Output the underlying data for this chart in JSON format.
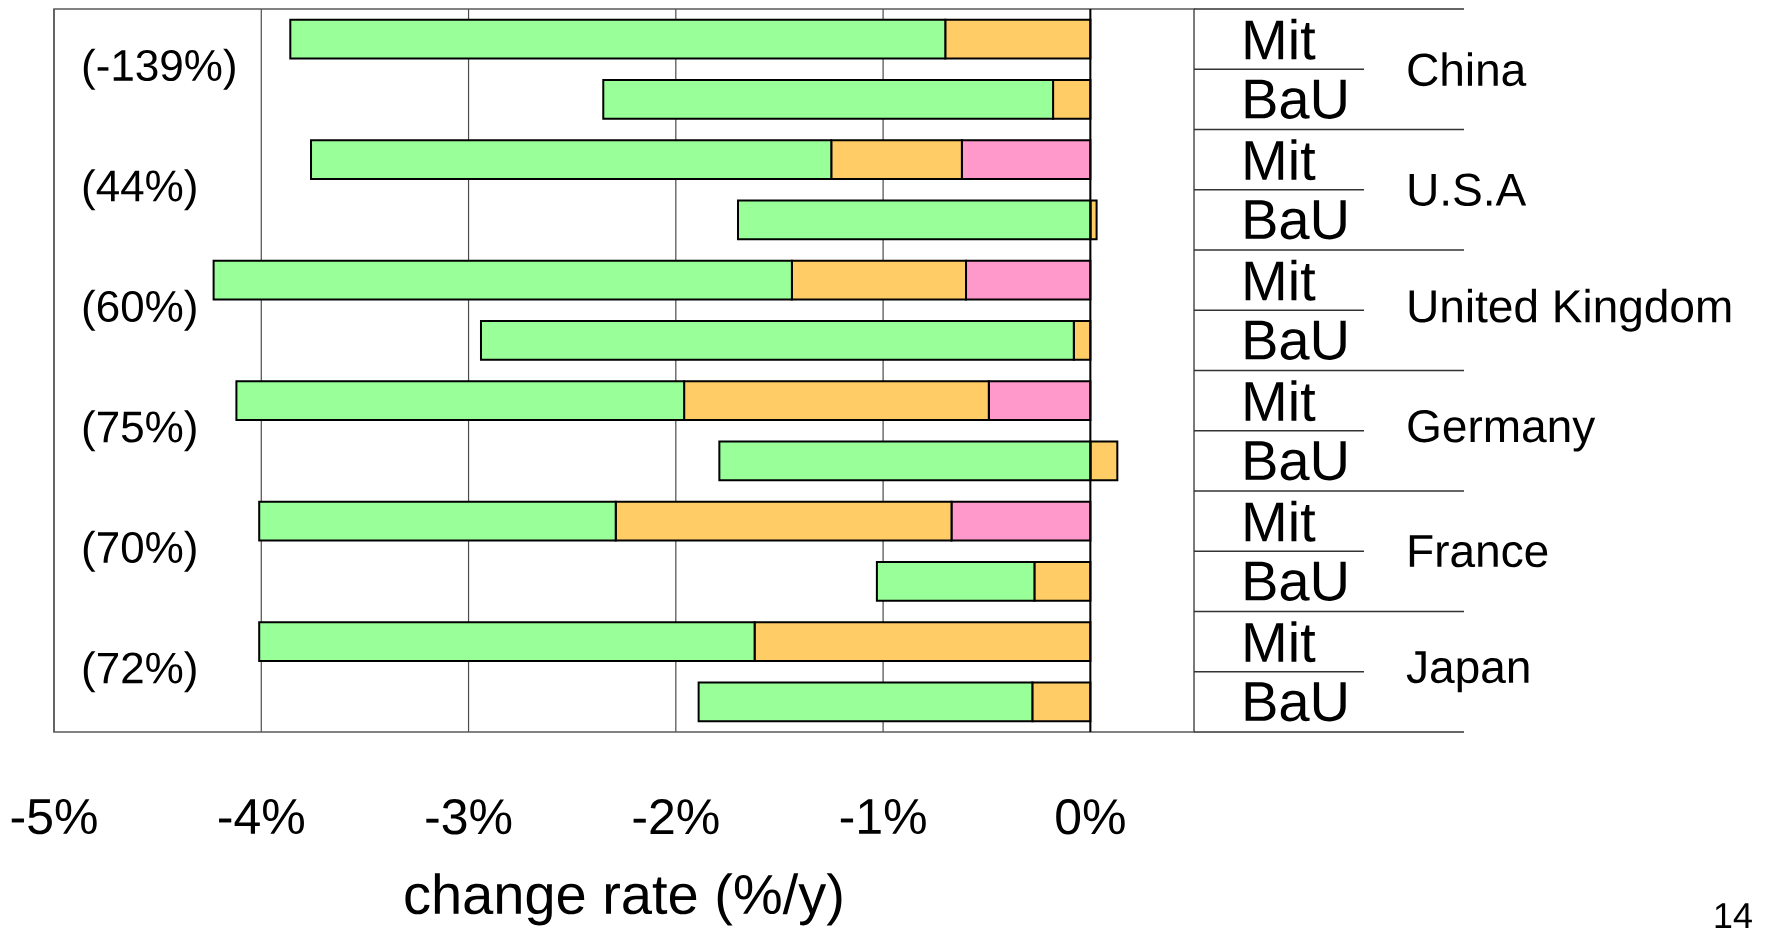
{
  "chart_data": {
    "type": "bar",
    "orientation": "horizontal",
    "stacked": true,
    "categories": [
      "Mit",
      "BaU",
      "Mit",
      "BaU",
      "Mit",
      "BaU",
      "Mit",
      "BaU",
      "Mit",
      "BaU",
      "Mit",
      "BaU"
    ],
    "series": [
      {
        "color": "#ff99cc",
        "values": [
          null,
          null,
          -0.62,
          null,
          -0.6,
          null,
          -0.49,
          null,
          -0.67,
          null,
          null,
          null
        ]
      },
      {
        "color": "#ffcc66",
        "values": [
          -0.7,
          -0.18,
          -0.63,
          0.03,
          -0.84,
          -0.08,
          -1.47,
          0.13,
          -1.62,
          -0.27,
          -1.62,
          -0.28
        ]
      },
      {
        "color": "#99ff99",
        "values": [
          -3.16,
          -2.17,
          -2.51,
          -1.7,
          -2.79,
          -2.86,
          -2.16,
          -1.79,
          -1.72,
          -0.76,
          -2.39,
          -1.61
        ]
      }
    ],
    "xlim": [
      -5,
      0.5
    ],
    "xticks": [
      {
        "value": -5,
        "label": "-5%"
      },
      {
        "value": -4,
        "label": "-4%"
      },
      {
        "value": -3,
        "label": "-3%"
      },
      {
        "value": -2,
        "label": "-2%"
      },
      {
        "value": -1,
        "label": "-1%"
      },
      {
        "value": 0,
        "label": "0%"
      }
    ],
    "xlabel": "change rate (%/y)",
    "grid": "x",
    "annotations": [
      "(-139%)",
      "(44%)",
      "(60%)",
      "(75%)",
      "(70%)",
      "(72%)",
      "China",
      "U.S.A",
      "United Kingdom",
      "Germany",
      "France",
      "Japan",
      "14"
    ]
  }
}
